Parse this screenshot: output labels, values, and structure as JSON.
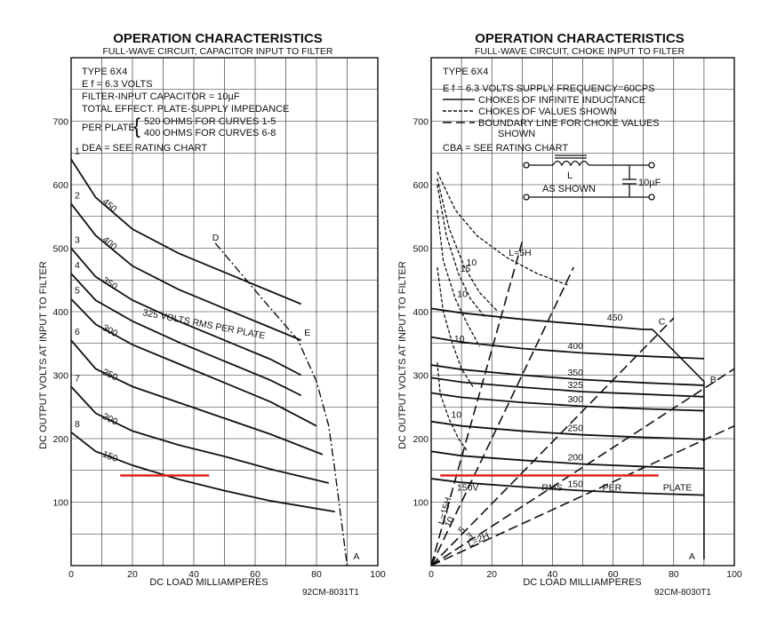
{
  "chart_data": [
    {
      "type": "line",
      "title": "OPERATION CHARACTERISTICS",
      "subtitle": "FULL-WAVE CIRCUIT, CAPACITOR INPUT TO FILTER",
      "info_lines": [
        "TYPE 6X4",
        "E f = 6.3 VOLTS",
        "FILTER-INPUT CAPACITOR = 10µF",
        "TOTAL EFFECT. PLATE-SUPPLY IMPEDANCE"
      ],
      "per_plate_label": "PER PLATE",
      "per_plate_lines": [
        "520 OHMS FOR CURVES 1-5",
        "400 OHMS FOR CURVES 6-8"
      ],
      "rating_line": "DEA = SEE RATING CHART",
      "xlabel": "DC LOAD MILLIAMPERES",
      "ylabel": "DC OUTPUT VOLTS AT INPUT TO FILTER",
      "xlim": [
        0,
        100
      ],
      "ylim": [
        0,
        800
      ],
      "xticks": [
        0,
        20,
        40,
        60,
        80,
        100
      ],
      "yticks": [
        100,
        200,
        300,
        400,
        500,
        600,
        700
      ],
      "grid": true,
      "code": "92CM-8031T1",
      "rms_label": "325 VOLTS RMS PER PLATE",
      "series": [
        {
          "name": "1",
          "label": "450",
          "x": [
            0,
            8,
            20,
            35,
            50,
            65,
            75
          ],
          "y": [
            640,
            580,
            530,
            492,
            462,
            432,
            412
          ]
        },
        {
          "name": "2",
          "label": "400",
          "x": [
            0,
            8,
            20,
            35,
            50,
            65,
            75
          ],
          "y": [
            570,
            520,
            472,
            435,
            405,
            375,
            355
          ]
        },
        {
          "name": "3",
          "label": "350",
          "x": [
            0,
            8,
            20,
            35,
            50,
            65,
            75
          ],
          "y": [
            500,
            455,
            418,
            385,
            355,
            325,
            300
          ]
        },
        {
          "name": "4",
          "label": "",
          "x": [
            0,
            8,
            20,
            35,
            50,
            65,
            75
          ],
          "y": [
            460,
            418,
            385,
            352,
            322,
            292,
            268
          ]
        },
        {
          "name": "5",
          "label": "300",
          "x": [
            0,
            8,
            20,
            35,
            50,
            65,
            80
          ],
          "y": [
            420,
            380,
            348,
            318,
            288,
            258,
            220
          ]
        },
        {
          "name": "6",
          "label": "250",
          "x": [
            0,
            8,
            20,
            35,
            50,
            65,
            82
          ],
          "y": [
            355,
            310,
            282,
            257,
            232,
            207,
            175
          ]
        },
        {
          "name": "7",
          "label": "200",
          "x": [
            0,
            8,
            20,
            35,
            50,
            65,
            84
          ],
          "y": [
            282,
            240,
            212,
            190,
            172,
            152,
            130
          ]
        },
        {
          "name": "8",
          "label": "150",
          "x": [
            0,
            8,
            20,
            35,
            50,
            65,
            86
          ],
          "y": [
            210,
            180,
            158,
            136,
            118,
            102,
            85
          ]
        }
      ],
      "boundary": {
        "x": [
          47,
          62,
          74,
          80,
          84,
          86,
          90
        ],
        "y": [
          508,
          422,
          355,
          290,
          220,
          150,
          0
        ]
      },
      "boundary_labels": [
        {
          "text": "D",
          "x": 46,
          "y": 512
        },
        {
          "text": "E",
          "x": 76,
          "y": 362
        },
        {
          "text": "A",
          "x": 92,
          "y": 10
        }
      ]
    },
    {
      "type": "line",
      "title": "OPERATION CHARACTERISTICS",
      "subtitle": "FULL-WAVE CIRCUIT, CHOKE INPUT TO FILTER",
      "info_lines": [
        "TYPE 6X4",
        "E f = 6.3 VOLTS   SUPPLY FREQUENCY=60CPS"
      ],
      "legend": [
        "CHOKES OF INFINITE INDUCTANCE",
        "CHOKES OF VALUES SHOWN",
        "BOUNDARY LINE FOR CHOKE VALUES",
        "SHOWN"
      ],
      "rating_line": "CBA = SEE RATING CHART",
      "circuit_labels": [
        "L",
        "AS SHOWN",
        "10µF"
      ],
      "xlabel": "DC LOAD MILLIAMPERES",
      "ylabel": "DC OUTPUT VOLTS AT INPUT TO FILTER",
      "xlim": [
        0,
        100
      ],
      "ylim": [
        0,
        800
      ],
      "xticks": [
        0,
        20,
        40,
        60,
        80,
        100
      ],
      "yticks": [
        100,
        200,
        300,
        400,
        500,
        600,
        700
      ],
      "grid": true,
      "code": "92CM-8030T1",
      "rms_labels": [
        "150V",
        "RMS",
        "PER",
        "PLATE"
      ],
      "series": [
        {
          "name": "450",
          "x": [
            0,
            10,
            30,
            50,
            70,
            73
          ],
          "y": [
            405,
            398,
            388,
            380,
            372,
            372
          ]
        },
        {
          "name": "400",
          "x": [
            0,
            10,
            30,
            50,
            70,
            90
          ],
          "y": [
            360,
            352,
            342,
            335,
            330,
            326
          ]
        },
        {
          "name": "350",
          "x": [
            0,
            10,
            30,
            50,
            70,
            90
          ],
          "y": [
            316,
            309,
            300,
            293,
            288,
            284
          ]
        },
        {
          "name": "325",
          "x": [
            0,
            10,
            30,
            50,
            70,
            90
          ],
          "y": [
            296,
            289,
            281,
            274,
            270,
            266
          ]
        },
        {
          "name": "300",
          "x": [
            0,
            10,
            30,
            50,
            70,
            90
          ],
          "y": [
            272,
            265,
            257,
            251,
            247,
            244
          ]
        },
        {
          "name": "250",
          "x": [
            0,
            10,
            30,
            50,
            70,
            90
          ],
          "y": [
            227,
            220,
            212,
            206,
            202,
            199
          ]
        },
        {
          "name": "200",
          "x": [
            0,
            10,
            30,
            50,
            70,
            90
          ],
          "y": [
            180,
            173,
            166,
            160,
            156,
            153
          ]
        },
        {
          "name": "150",
          "x": [
            0,
            10,
            30,
            50,
            70,
            90
          ],
          "y": [
            137,
            131,
            124,
            118,
            114,
            111
          ]
        }
      ],
      "choke_curves": [
        {
          "name": "L=5H",
          "x": [
            2,
            8,
            15,
            25,
            35,
            45
          ],
          "y": [
            620,
            560,
            520,
            485,
            460,
            442
          ]
        },
        {
          "name": "10",
          "x": [
            2,
            6,
            11,
            16,
            22
          ],
          "y": [
            610,
            530,
            470,
            430,
            400
          ]
        },
        {
          "name": "15",
          "x": [
            2,
            5,
            9,
            13,
            18
          ],
          "y": [
            600,
            520,
            460,
            420,
            390
          ]
        },
        {
          "name": "10",
          "x": [
            2,
            4,
            8,
            12,
            16
          ],
          "y": [
            560,
            480,
            420,
            380,
            345
          ]
        },
        {
          "name": "10",
          "x": [
            2,
            4,
            7,
            10,
            14
          ],
          "y": [
            470,
            400,
            350,
            310,
            280
          ]
        },
        {
          "name": "10",
          "x": [
            2,
            3,
            6,
            9,
            12
          ],
          "y": [
            320,
            270,
            230,
            200,
            180
          ]
        }
      ],
      "choke_lines": [
        {
          "name": "L=15H",
          "x": [
            0,
            30
          ],
          "y": [
            0,
            510
          ]
        },
        {
          "name": "10",
          "x": [
            0,
            47
          ],
          "y": [
            0,
            470
          ]
        },
        {
          "name": "5",
          "x": [
            0,
            80
          ],
          "y": [
            0,
            390
          ]
        },
        {
          "name": "3",
          "x": [
            0,
            100
          ],
          "y": [
            0,
            310
          ]
        },
        {
          "name": "L=2H",
          "x": [
            0,
            100
          ],
          "y": [
            0,
            220
          ]
        }
      ],
      "boundary": {
        "x": [
          73,
          90,
          90
        ],
        "y": [
          372,
          290,
          10
        ]
      },
      "boundary_labels": [
        {
          "text": "C",
          "x": 75,
          "y": 380
        },
        {
          "text": "B",
          "x": 92,
          "y": 288
        },
        {
          "text": "A",
          "x": 85,
          "y": 10
        }
      ]
    }
  ],
  "highlight": {
    "color": "#e02020"
  }
}
